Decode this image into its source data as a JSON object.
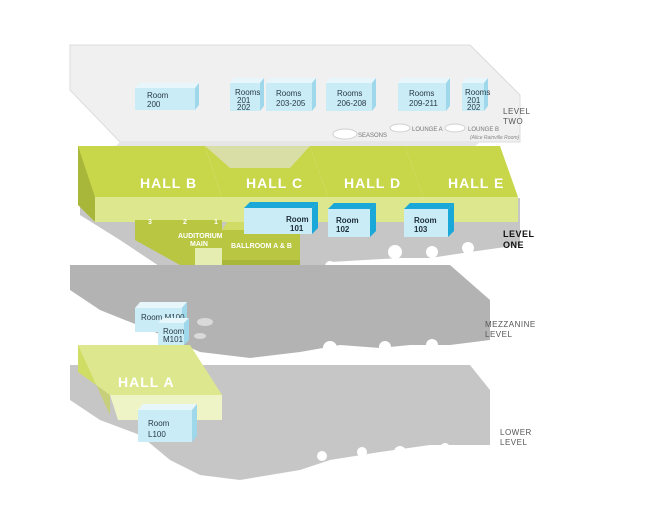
{
  "levels": {
    "two": {
      "line1": "LEVEL",
      "line2": "TWO"
    },
    "one": {
      "line1": "LEVEL",
      "line2": "ONE"
    },
    "mezzanine": {
      "line1": "MEZZANINE",
      "line2": "LEVEL"
    },
    "lower": {
      "line1": "LOWER",
      "line2": "LEVEL"
    }
  },
  "level_two_rooms": [
    {
      "line1": "Room",
      "line2": "200",
      "line3": ""
    },
    {
      "line1": "Rooms",
      "line2": "201",
      "line3": "202"
    },
    {
      "line1": "Rooms",
      "line2": "203-205",
      "line3": ""
    },
    {
      "line1": "Rooms",
      "line2": "206-208",
      "line3": ""
    },
    {
      "line1": "Rooms",
      "line2": "209-211",
      "line3": ""
    },
    {
      "line1": "Rooms",
      "line2": "201",
      "line3": "202"
    }
  ],
  "level_two_lounges": {
    "seasons": "SEASONS",
    "lounge_a": "LOUNGE A",
    "lounge_b": "LOUNGE B",
    "lounge_b_note": "(Alice Rainville Room)"
  },
  "halls": {
    "b": "HALL  B",
    "c": "HALL  C",
    "d": "HALL  D",
    "e": "HALL  E",
    "a": "HALL  A"
  },
  "level_one_rooms": [
    {
      "line1": "Room",
      "line2": "101"
    },
    {
      "line1": "Room",
      "line2": "102"
    },
    {
      "line1": "Room",
      "line2": "103"
    }
  ],
  "auditorium": {
    "line1": "AUDITORIUM",
    "line2": "MAIN",
    "sections": [
      "3",
      "2",
      "1"
    ]
  },
  "ballroom": "BALLROOM A & B",
  "mezzanine_rooms": [
    {
      "line1": "Room M100"
    },
    {
      "line1": "Room",
      "line2": "M101"
    }
  ],
  "lower_rooms": [
    {
      "line1": "Room",
      "line2": "L100"
    }
  ],
  "colors": {
    "hall_top": "#c8d64a",
    "hall_side": "#a8b63a",
    "hall_light": "#dde88e",
    "room_light": "#c9ecf7",
    "room_top": "#a8dcef",
    "room_dark": "#19a8d8",
    "floor_gray": "#b3b3b3",
    "floor_light": "#e3e3e3"
  }
}
